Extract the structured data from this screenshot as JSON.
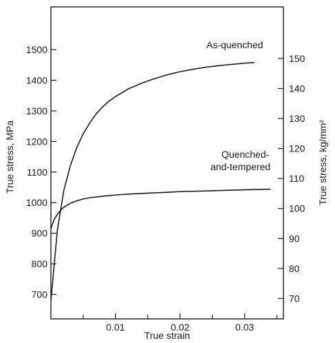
{
  "chart_data": {
    "type": "line",
    "title": "",
    "xlabel": "True strain",
    "ylabel": "True stress, MPa",
    "ylabel_right": "True stress, kg/mm²",
    "xlim": [
      0,
      0.036
    ],
    "ylim": [
      620,
      1640
    ],
    "ylim_right": [
      63.2,
      167.2
    ],
    "x_ticks": [
      0.01,
      0.02,
      0.03
    ],
    "x_tick_labels": [
      "0.01",
      "0.02",
      "0.03"
    ],
    "x_minor_ticks": [
      0.005,
      0.015,
      0.025,
      0.035
    ],
    "y_ticks": [
      700,
      800,
      900,
      1000,
      1100,
      1200,
      1300,
      1400,
      1500
    ],
    "y_tick_labels": [
      "700",
      "800",
      "900",
      "1000",
      "1100",
      "1200",
      "1300",
      "1400",
      "1500"
    ],
    "y_right_ticks": [
      70,
      80,
      90,
      100,
      110,
      120,
      130,
      140,
      150
    ],
    "y_right_tick_labels": [
      "70",
      "80",
      "90",
      "100",
      "110",
      "120",
      "130",
      "140",
      "150"
    ],
    "grid": false,
    "legend": "none",
    "series": [
      {
        "name": "As-quenched",
        "x": [
          0,
          0.001,
          0.002,
          0.003,
          0.004,
          0.005,
          0.006,
          0.007,
          0.008,
          0.009,
          0.01,
          0.012,
          0.014,
          0.016,
          0.018,
          0.02,
          0.022,
          0.024,
          0.026,
          0.028,
          0.03,
          0.0315
        ],
        "y": [
          680,
          910,
          1040,
          1120,
          1180,
          1225,
          1260,
          1290,
          1313,
          1332,
          1347,
          1372,
          1390,
          1405,
          1418,
          1428,
          1436,
          1443,
          1448,
          1452,
          1456,
          1458
        ]
      },
      {
        "name": "Quenched-and-tempered",
        "x": [
          0,
          0.0005,
          0.001,
          0.0015,
          0.002,
          0.003,
          0.004,
          0.005,
          0.006,
          0.008,
          0.01,
          0.012,
          0.015,
          0.018,
          0.02,
          0.025,
          0.03,
          0.034
        ],
        "y": [
          915,
          945,
          962,
          975,
          985,
          998,
          1006,
          1012,
          1016,
          1021,
          1025,
          1028,
          1031,
          1034,
          1036,
          1039,
          1042,
          1044
        ]
      }
    ],
    "annotations": [
      "As-quenched",
      "Quenched-",
      "and-tempered"
    ]
  }
}
